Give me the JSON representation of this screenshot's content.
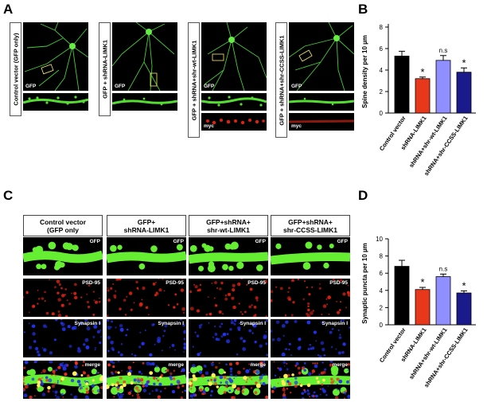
{
  "figure": {
    "panel_labels": {
      "a": "A",
      "b": "B",
      "c": "C",
      "d": "D"
    },
    "panel_a": {
      "conditions": [
        {
          "label": "Control vector (GFP only)",
          "channels": [
            "GFP"
          ]
        },
        {
          "label": "GFP + shRNA-LIMK1",
          "channels": [
            "GFP"
          ]
        },
        {
          "label": "GFP + shRNA+shr-wt-LIMK1",
          "channels": [
            "GFP",
            "myc"
          ]
        },
        {
          "label": "GFP + shRNA+shr-CCSS-LIMK1",
          "channels": [
            "GFP",
            "myc"
          ]
        }
      ]
    },
    "panel_c": {
      "columns": [
        {
          "line1": "Control vector",
          "line2": "(GFP only"
        },
        {
          "line1": "GFP+",
          "line2": "shRNA-LIMK1"
        },
        {
          "line1": "GFP+shRNA+",
          "line2": "shr-wt-LIMK1"
        },
        {
          "line1": "GFP+shRNA+",
          "line2": "shr-CCSS-LIMK1"
        }
      ],
      "rows": [
        "GFP",
        "PSD-95",
        "Synapsin I",
        "merge"
      ]
    }
  },
  "chart_data": [
    {
      "panel": "B",
      "type": "bar",
      "categories": [
        "Control vector",
        "shRNA-LIMK1",
        "shRNA+shr-wt-LIMK1",
        "shRNA+shr-CCSS-LIMK1"
      ],
      "values": [
        5.3,
        3.2,
        4.9,
        3.8
      ],
      "errors": [
        0.45,
        0.15,
        0.45,
        0.4
      ],
      "colors": [
        "#000000",
        "#e8381c",
        "#8f8fff",
        "#1a1a8c"
      ],
      "significance": [
        "",
        "*",
        "n.s",
        "*"
      ],
      "ylabel": "Spine density per 10 µm",
      "ylim": [
        0,
        8
      ],
      "yticks": [
        "0",
        "2",
        "4",
        "6",
        "8"
      ],
      "ytick_values": [
        0,
        2,
        4,
        6,
        8
      ]
    },
    {
      "panel": "D",
      "type": "bar",
      "categories": [
        "Control vector",
        "shRNA-LIMK1",
        "shRNA+shr-wt-LIMK1",
        "shRNA+shr-CCSS-LIMK1"
      ],
      "values": [
        6.8,
        4.1,
        5.6,
        3.7
      ],
      "errors": [
        0.7,
        0.25,
        0.3,
        0.25
      ],
      "colors": [
        "#000000",
        "#e8381c",
        "#8f8fff",
        "#1a1a8c"
      ],
      "significance": [
        "",
        "*",
        "n.s",
        "*"
      ],
      "ylabel": "Synaptic puncta per 10 µm",
      "ylim": [
        0,
        10
      ],
      "yticks": [
        "0",
        "2",
        "4",
        "6",
        "8",
        "10"
      ],
      "ytick_values": [
        0,
        2,
        4,
        6,
        8,
        10
      ]
    }
  ]
}
